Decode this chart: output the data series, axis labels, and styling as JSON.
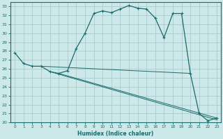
{
  "xlabel": "Humidex (Indice chaleur)",
  "bg_color": "#cce8e8",
  "grid_color": "#aacccc",
  "line_color": "#1a6b6b",
  "xlim": [
    -0.5,
    23.5
  ],
  "ylim": [
    20,
    33.5
  ],
  "xticks": [
    0,
    1,
    2,
    3,
    4,
    5,
    6,
    7,
    8,
    9,
    10,
    11,
    12,
    13,
    14,
    15,
    16,
    17,
    18,
    19,
    20,
    21,
    22,
    23
  ],
  "yticks": [
    20,
    21,
    22,
    23,
    24,
    25,
    26,
    27,
    28,
    29,
    30,
    31,
    32,
    33
  ],
  "curve_x": [
    0,
    1,
    2,
    3,
    4,
    5,
    6,
    7,
    8,
    9,
    10,
    11,
    12,
    13,
    14,
    15,
    16,
    17,
    18,
    19,
    20,
    21,
    22,
    23
  ],
  "curve_y": [
    27.8,
    26.6,
    26.3,
    26.3,
    25.7,
    25.5,
    25.8,
    28.3,
    30.0,
    32.2,
    32.5,
    32.3,
    32.7,
    33.1,
    32.8,
    32.7,
    31.7,
    29.5,
    32.2,
    32.2,
    25.5,
    21.0,
    20.2,
    20.5
  ],
  "line1_x": [
    3,
    20
  ],
  "line1_y": [
    26.3,
    25.5
  ],
  "line2_x": [
    4,
    23
  ],
  "line2_y": [
    25.7,
    20.3
  ],
  "line3_x": [
    5,
    23
  ],
  "line3_y": [
    25.5,
    20.5
  ]
}
